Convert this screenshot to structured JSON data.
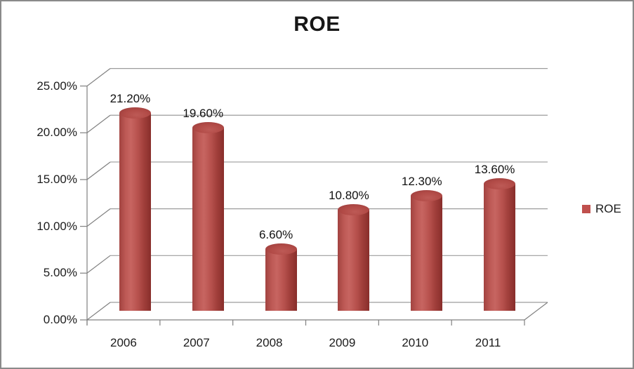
{
  "window": {
    "background": "#FFFFFF",
    "border_color": "#8A8A8A"
  },
  "chart_data": {
    "type": "bar",
    "subtype": "3d-cylinder",
    "title": "ROE",
    "categories": [
      "2006",
      "2007",
      "2008",
      "2009",
      "2010",
      "2011"
    ],
    "series": [
      {
        "name": "ROE",
        "values": [
          21.2,
          19.6,
          6.6,
          10.8,
          12.3,
          13.6
        ]
      }
    ],
    "data_labels": [
      "21.20%",
      "19.60%",
      "6.60%",
      "10.80%",
      "12.30%",
      "13.60%"
    ],
    "xlabel": "",
    "ylabel": "",
    "ylim": [
      0,
      25
    ],
    "y_tick_step": 5,
    "y_tick_labels": [
      "0.00%",
      "5.00%",
      "10.00%",
      "15.00%",
      "20.00%",
      "25.00%"
    ],
    "grid": true,
    "legend": {
      "position": "right",
      "entries": [
        {
          "label": "ROE",
          "swatch_color": "#C0504D"
        }
      ]
    },
    "colors": {
      "series_base": "#C0504D",
      "cylinder_highlight": "#C76561",
      "cylinder_shadow": "#882E2B",
      "cylinder_bottom": "#7C2623",
      "gridline": "#9C9C9C",
      "axis": "#808080",
      "text": "#1A1A1A"
    }
  }
}
